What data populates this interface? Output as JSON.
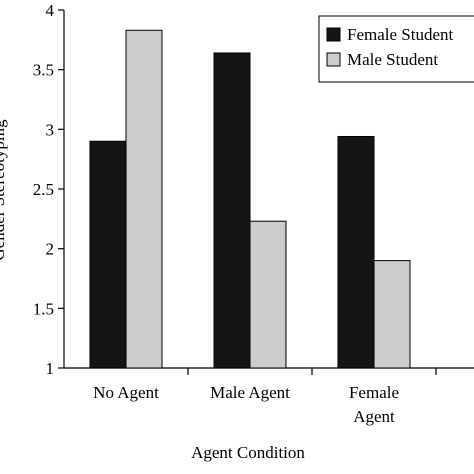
{
  "chart_data": {
    "type": "bar",
    "title": "",
    "xlabel": "Agent Condition",
    "ylabel": "Gender Stereotyping",
    "ylim": [
      1,
      4
    ],
    "yticks": [
      "1",
      "1.5",
      "2",
      "2.5",
      "3",
      "3.5",
      "4"
    ],
    "categories": [
      {
        "lines": [
          "No Agent"
        ]
      },
      {
        "lines": [
          "Male Agent"
        ]
      },
      {
        "lines": [
          "Female",
          "Agent"
        ]
      }
    ],
    "series": [
      {
        "name": "Female Student",
        "color": "#151515",
        "values": [
          2.9,
          3.64,
          2.94
        ]
      },
      {
        "name": "Male Student",
        "color": "#cccccc",
        "values": [
          3.83,
          2.23,
          1.9
        ]
      }
    ],
    "legend_position": "top-right",
    "grid": false
  }
}
